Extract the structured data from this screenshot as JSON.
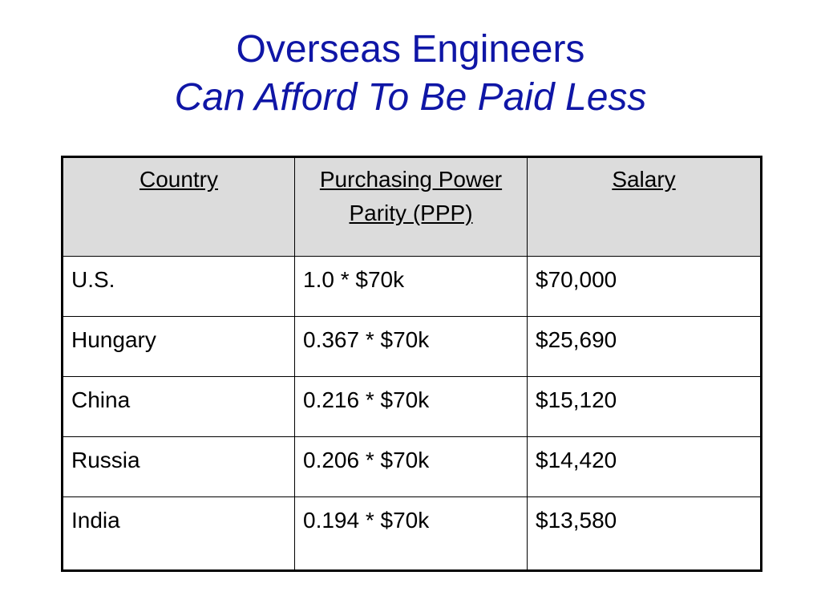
{
  "slide": {
    "title": "Overseas Engineers",
    "subtitle": "Can Afford To Be Paid Less"
  },
  "table": {
    "headers": [
      "Country",
      "Purchasing Power Parity (PPP)",
      "Salary"
    ],
    "rows": [
      {
        "country": "U.S.",
        "ppp": "1.0 * $70k",
        "salary": "$70,000"
      },
      {
        "country": "Hungary",
        "ppp": "0.367 * $70k",
        "salary": "$25,690"
      },
      {
        "country": "China",
        "ppp": "0.216 * $70k",
        "salary": "$15,120"
      },
      {
        "country": "Russia",
        "ppp": "0.206 * $70k",
        "salary": "$14,420"
      },
      {
        "country": "India",
        "ppp": "0.194 * $70k",
        "salary": "$13,580"
      }
    ]
  },
  "colors": {
    "title": "#0f16a6",
    "header_bg": "#dcdcdc",
    "border": "#000000"
  }
}
